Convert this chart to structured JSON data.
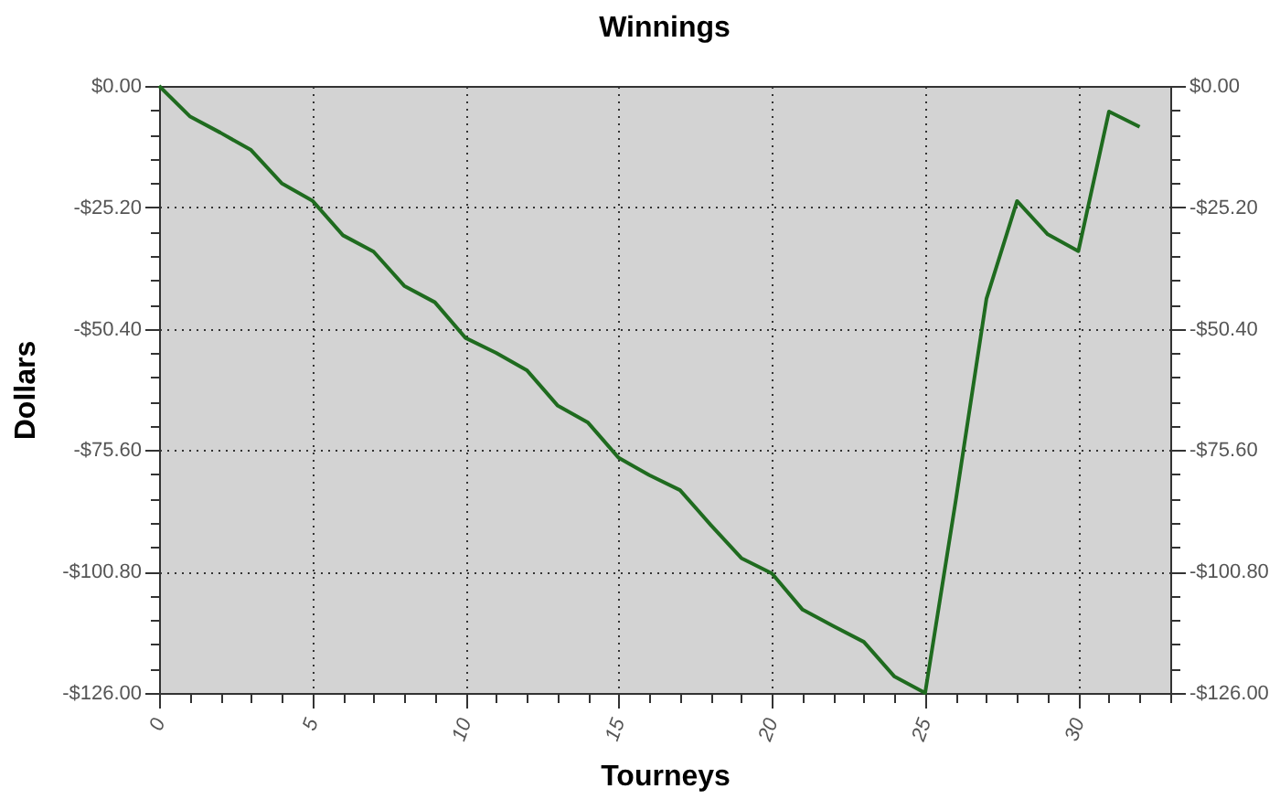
{
  "chart_data": {
    "type": "line",
    "title": "Winnings",
    "xlabel": "Tourneys",
    "ylabel": "Dollars",
    "x": [
      0,
      1,
      2,
      3,
      4,
      5,
      6,
      7,
      8,
      9,
      10,
      11,
      12,
      13,
      14,
      15,
      16,
      17,
      18,
      19,
      20,
      21,
      22,
      23,
      24,
      25,
      26,
      27,
      28,
      29,
      30,
      31,
      32
    ],
    "series": [
      {
        "color": "#1f6b1f",
        "values": [
          0,
          -6.3,
          -9.7,
          -13.3,
          -20.2,
          -23.8,
          -31.0,
          -34.4,
          -41.5,
          -44.9,
          -52.3,
          -55.4,
          -59.0,
          -66.3,
          -69.9,
          -77.2,
          -80.8,
          -83.9,
          -91.1,
          -98.0,
          -101.2,
          -108.7,
          -112.1,
          -115.4,
          -122.6,
          -126,
          -86,
          -44.2,
          -23.9,
          -30.8,
          -34.3,
          -5.3,
          -8.5
        ]
      }
    ],
    "xlim": [
      0,
      33
    ],
    "xticks": [
      0,
      {
        "value": 1,
        "label": null
      },
      {
        "value": 2,
        "label": null
      },
      {
        "value": 3,
        "label": null
      },
      {
        "value": 4,
        "label": null
      },
      5,
      {
        "value": 6,
        "label": null
      },
      {
        "value": 7,
        "label": null
      },
      {
        "value": 8,
        "label": null
      },
      {
        "value": 9,
        "label": null
      },
      10,
      {
        "value": 11,
        "label": null
      },
      {
        "value": 12,
        "label": null
      },
      {
        "value": 13,
        "label": null
      },
      {
        "value": 14,
        "label": null
      },
      15,
      {
        "value": 16,
        "label": null
      },
      {
        "value": 17,
        "label": null
      },
      {
        "value": 18,
        "label": null
      },
      {
        "value": 19,
        "label": null
      },
      20,
      {
        "value": 21,
        "label": null
      },
      {
        "value": 22,
        "label": null
      },
      {
        "value": 23,
        "label": null
      },
      {
        "value": 24,
        "label": null
      },
      25,
      {
        "value": 26,
        "label": null
      },
      {
        "value": 27,
        "label": null
      },
      {
        "value": 28,
        "label": null
      },
      {
        "value": 29,
        "label": null
      },
      30,
      {
        "value": 31,
        "label": null
      },
      {
        "value": 32,
        "label": null
      },
      {
        "value": 33,
        "label": null
      }
    ],
    "ylim": [
      -126,
      0
    ],
    "yticks": [
      {
        "value": 0,
        "label": "$0.00"
      },
      {
        "value": -5.04,
        "label": null
      },
      {
        "value": -10.08,
        "label": null
      },
      {
        "value": -15.12,
        "label": null
      },
      {
        "value": -20.16,
        "label": null
      },
      {
        "value": -25.2,
        "label": "-$25.20"
      },
      {
        "value": -30.24,
        "label": null
      },
      {
        "value": -35.28,
        "label": null
      },
      {
        "value": -40.32,
        "label": null
      },
      {
        "value": -45.36,
        "label": null
      },
      {
        "value": -50.4,
        "label": "-$50.40"
      },
      {
        "value": -55.44,
        "label": null
      },
      {
        "value": -60.48,
        "label": null
      },
      {
        "value": -65.52,
        "label": null
      },
      {
        "value": -70.56,
        "label": null
      },
      {
        "value": -75.6,
        "label": "-$75.60"
      },
      {
        "value": -80.64,
        "label": null
      },
      {
        "value": -85.68,
        "label": null
      },
      {
        "value": -90.72,
        "label": null
      },
      {
        "value": -95.76,
        "label": null
      },
      {
        "value": -100.8,
        "label": "-$100.80"
      },
      {
        "value": -105.84,
        "label": null
      },
      {
        "value": -110.88,
        "label": null
      },
      {
        "value": -115.92,
        "label": null
      },
      {
        "value": -120.96,
        "label": null
      },
      {
        "value": -126,
        "label": "-$126.00"
      }
    ],
    "y2lim": [
      -126,
      0
    ],
    "y2ticks": [
      {
        "value": 0,
        "label": "$0.00"
      },
      {
        "value": -5.04,
        "label": null
      },
      {
        "value": -10.08,
        "label": null
      },
      {
        "value": -15.12,
        "label": null
      },
      {
        "value": -20.16,
        "label": null
      },
      {
        "value": -25.2,
        "label": "-$25.20"
      },
      {
        "value": -30.24,
        "label": null
      },
      {
        "value": -35.28,
        "label": null
      },
      {
        "value": -40.32,
        "label": null
      },
      {
        "value": -45.36,
        "label": null
      },
      {
        "value": -50.4,
        "label": "-$50.40"
      },
      {
        "value": -55.44,
        "label": null
      },
      {
        "value": -60.48,
        "label": null
      },
      {
        "value": -65.52,
        "label": null
      },
      {
        "value": -70.56,
        "label": null
      },
      {
        "value": -75.6,
        "label": "-$75.60"
      },
      {
        "value": -80.64,
        "label": null
      },
      {
        "value": -85.68,
        "label": null
      },
      {
        "value": -90.72,
        "label": null
      },
      {
        "value": -95.76,
        "label": null
      },
      {
        "value": -100.8,
        "label": "-$100.80"
      },
      {
        "value": -105.84,
        "label": null
      },
      {
        "value": -110.88,
        "label": null
      },
      {
        "value": -115.92,
        "label": null
      },
      {
        "value": -120.96,
        "label": null
      },
      {
        "value": -126,
        "label": "-$126.00"
      }
    ],
    "grid": true,
    "line_style": "solid"
  }
}
